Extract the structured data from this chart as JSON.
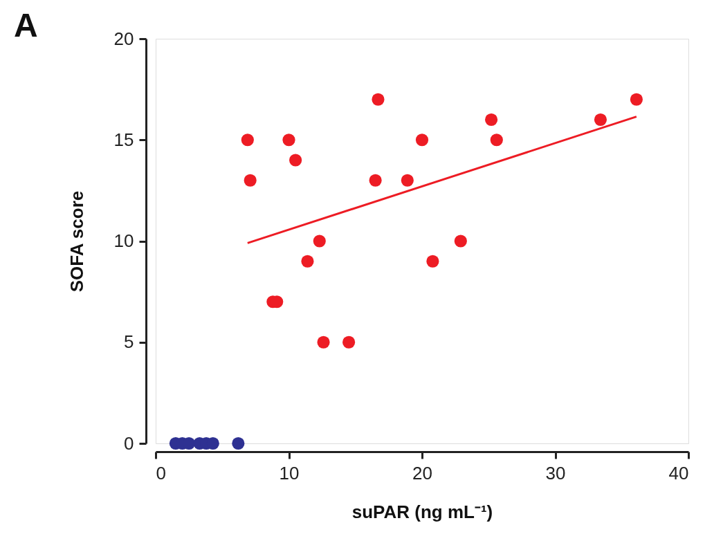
{
  "chart_data": {
    "type": "scatter",
    "title": "A",
    "xlabel": "suPAR (ng mL⁻¹)",
    "ylabel": "SOFA score",
    "xlim": [
      0,
      40
    ],
    "xticks": [
      0,
      10,
      20,
      30,
      40
    ],
    "ylim": [
      0,
      20
    ],
    "yticks": [
      0,
      5,
      10,
      15,
      20
    ],
    "grid": false,
    "marker": "circle",
    "series": [
      {
        "color": "#ed1c24",
        "x": [
          6.9,
          7.1,
          8.8,
          9.1,
          10.0,
          10.5,
          11.4,
          12.3,
          12.6,
          14.5,
          16.5,
          16.7,
          18.9,
          20.0,
          20.8,
          22.9,
          25.2,
          25.6,
          33.4,
          36.1
        ],
        "values": [
          15,
          13,
          7,
          7,
          15,
          14,
          9,
          10,
          5,
          5,
          13,
          17,
          13,
          15,
          9,
          10,
          16,
          15,
          16,
          17
        ]
      },
      {
        "color": "#2e3192",
        "x": [
          1.5,
          2.0,
          2.5,
          3.3,
          3.8,
          4.3,
          6.2
        ],
        "values": [
          0,
          0,
          0,
          0,
          0,
          0,
          0
        ]
      },
      {
        "type": "line",
        "marker": "none",
        "color": "#ed1c24",
        "x": [
          6.9,
          36.1
        ],
        "values": [
          9.9,
          16.15
        ]
      }
    ]
  }
}
